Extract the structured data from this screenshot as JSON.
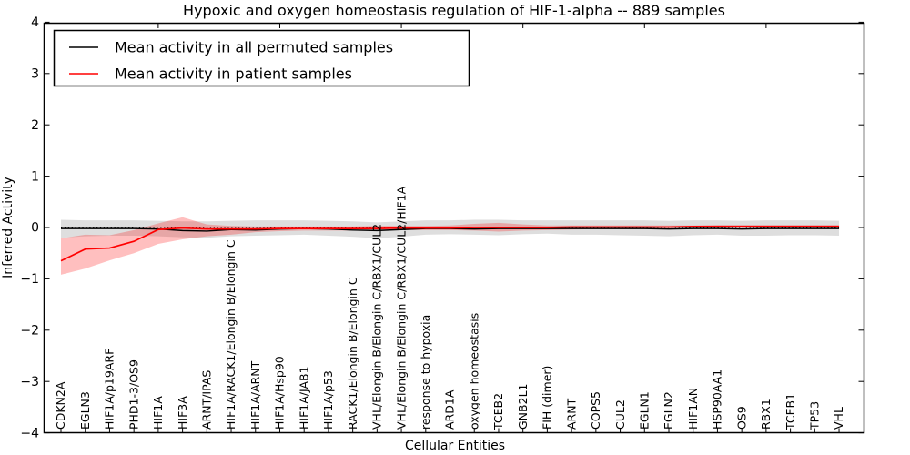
{
  "figure": {
    "title": "Hypoxic and oxygen homeostasis regulation of HIF-1-alpha -- 889 samples",
    "xlabel": "Cellular Entities",
    "ylabel": "Inferred Activity"
  },
  "legend": {
    "position": "upper left",
    "entries": [
      {
        "label": "Mean activity in all permuted samples",
        "color": "#000000"
      },
      {
        "label": "Mean activity in patient samples",
        "color": "#ff0000"
      }
    ]
  },
  "chart_data": {
    "type": "line",
    "title": "Hypoxic and oxygen homeostasis regulation of HIF-1-alpha -- 889 samples",
    "xlabel": "Cellular Entities",
    "ylabel": "Inferred Activity",
    "ylim": [
      -4,
      4
    ],
    "yticks": [
      4,
      3,
      2,
      1,
      0,
      -1,
      -2,
      -3,
      -4
    ],
    "ytick_labels": [
      "4",
      "3",
      "2",
      "1",
      "0",
      "−1",
      "−2",
      "−3",
      "−4"
    ],
    "grid": false,
    "legend_position": "upper left",
    "top_tick_indices": [
      4,
      9,
      14,
      19,
      24,
      29
    ],
    "zero_line": {
      "y": 0,
      "style": "dotted",
      "color": "#000000"
    },
    "categories": [
      "CDKN2A",
      "EGLN3",
      "HIF1A/p19ARF",
      "PHD1-3/OS9",
      "HIF1A",
      "HIF3A",
      "ARNT/IPAS",
      "HIF1A/RACK1/Elongin B/Elongin C",
      "HIF1A/ARNT",
      "HIF1A/Hsp90",
      "HIF1A/JAB1",
      "HIF1A/p53",
      "RACK1/Elongin B/Elongin C",
      "VHL/Elongin B/Elongin C/RBX1/CUL2",
      "VHL/Elongin B/Elongin C/RBX1/CUL2/HIF1A",
      "response to hypoxia",
      "ARD1A",
      "oxygen homeostasis",
      "TCEB2",
      "GNB2L1",
      "FIH (dimer)",
      "ARNT",
      "COPS5",
      "CUL2",
      "EGLN1",
      "EGLN2",
      "HIF1AN",
      "HSP90AA1",
      "OS9",
      "RBX1",
      "TCEB1",
      "TP53",
      "VHL"
    ],
    "series": [
      {
        "id": "permuted",
        "name": "Mean activity in all permuted samples",
        "color": "#000000",
        "band_color": "rgba(0,0,0,0.13)",
        "values": [
          -0.02,
          -0.02,
          -0.02,
          -0.02,
          -0.03,
          -0.06,
          -0.07,
          -0.04,
          -0.05,
          -0.03,
          -0.02,
          -0.03,
          -0.05,
          -0.06,
          -0.04,
          -0.02,
          -0.02,
          -0.03,
          -0.02,
          -0.02,
          -0.02,
          -0.02,
          -0.02,
          -0.02,
          -0.02,
          -0.03,
          -0.02,
          -0.02,
          -0.03,
          -0.02,
          -0.02,
          -0.02,
          -0.02
        ],
        "band_hi": [
          0.15,
          0.14,
          0.14,
          0.14,
          0.13,
          0.12,
          0.12,
          0.13,
          0.14,
          0.14,
          0.14,
          0.13,
          0.12,
          0.1,
          0.12,
          0.14,
          0.14,
          0.15,
          0.15,
          0.14,
          0.14,
          0.14,
          0.14,
          0.14,
          0.14,
          0.13,
          0.14,
          0.14,
          0.13,
          0.14,
          0.14,
          0.14,
          0.13
        ],
        "band_lo": [
          -0.2,
          -0.17,
          -0.16,
          -0.16,
          -0.17,
          -0.19,
          -0.2,
          -0.17,
          -0.16,
          -0.15,
          -0.14,
          -0.16,
          -0.18,
          -0.21,
          -0.18,
          -0.14,
          -0.13,
          -0.14,
          -0.15,
          -0.13,
          -0.12,
          -0.14,
          -0.14,
          -0.15,
          -0.16,
          -0.17,
          -0.15,
          -0.14,
          -0.16,
          -0.16,
          -0.15,
          -0.15,
          -0.16
        ]
      },
      {
        "id": "patient",
        "name": "Mean activity in patient samples",
        "color": "#ff0000",
        "band_color": "rgba(255,0,0,0.25)",
        "values": [
          -0.65,
          -0.42,
          -0.4,
          -0.27,
          -0.04,
          -0.01,
          -0.03,
          -0.03,
          -0.03,
          -0.02,
          -0.02,
          -0.02,
          -0.02,
          -0.02,
          -0.01,
          -0.01,
          -0.01,
          0.0,
          0.0,
          0.0,
          0.0,
          0.01,
          0.01,
          0.01,
          0.01,
          0.01,
          0.02,
          0.02,
          0.02,
          0.02,
          0.02,
          0.02,
          0.02
        ],
        "band_hi": [
          -0.21,
          -0.14,
          -0.15,
          -0.05,
          0.08,
          0.2,
          0.06,
          0.03,
          0.02,
          0.02,
          0.02,
          0.02,
          0.02,
          0.03,
          0.03,
          0.03,
          0.04,
          0.07,
          0.09,
          0.06,
          0.04,
          0.04,
          0.04,
          0.04,
          0.04,
          0.04,
          0.04,
          0.05,
          0.05,
          0.05,
          0.05,
          0.05,
          0.05
        ],
        "band_lo": [
          -0.92,
          -0.8,
          -0.64,
          -0.5,
          -0.32,
          -0.23,
          -0.17,
          -0.14,
          -0.09,
          -0.07,
          -0.06,
          -0.06,
          -0.06,
          -0.06,
          -0.05,
          -0.05,
          -0.05,
          -0.06,
          -0.08,
          -0.06,
          -0.05,
          -0.04,
          -0.03,
          -0.03,
          -0.03,
          -0.03,
          -0.02,
          -0.02,
          -0.01,
          -0.01,
          -0.01,
          -0.01,
          -0.01
        ]
      }
    ]
  }
}
